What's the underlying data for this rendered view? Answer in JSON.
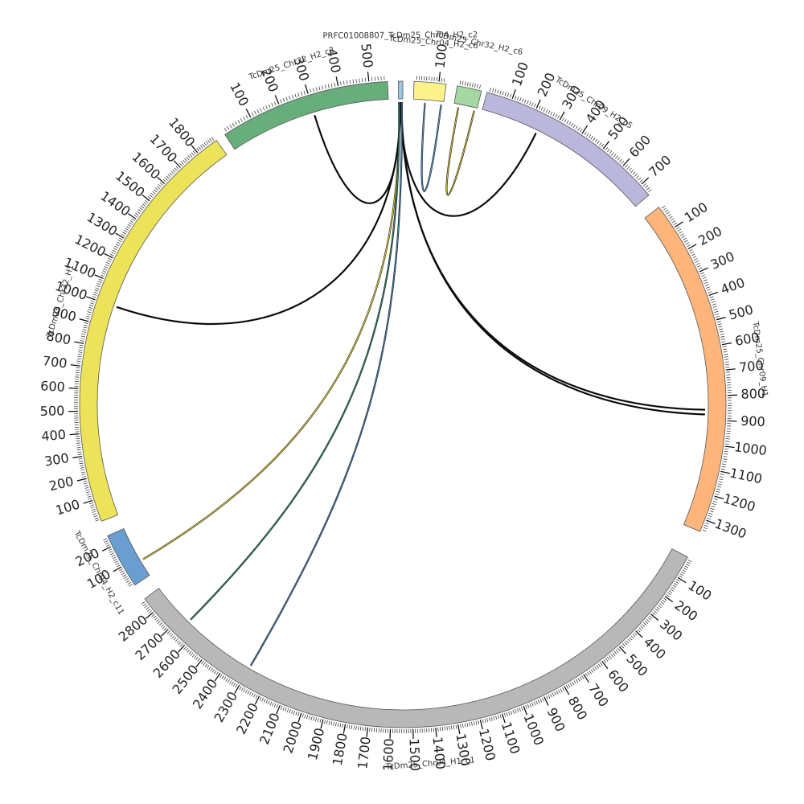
{
  "chart_data": {
    "type": "chord",
    "title": "",
    "chromosomes": [
      {
        "name": "TcDm25_Chr04_H1_c1",
        "length": 2870,
        "color": "#b8b8b8",
        "ticks": [
          100,
          200,
          300,
          400,
          500,
          600,
          700,
          800,
          900,
          1000,
          1100,
          1200,
          1300,
          1400,
          1500,
          1600,
          1700,
          1800,
          1900,
          2000,
          2100,
          2200,
          2300,
          2400,
          2500,
          2600,
          2700,
          2800
        ]
      },
      {
        "name": "TcDm25_Chr04_H2_c11",
        "length": 250,
        "color": "#6a9ed0",
        "ticks": [
          100,
          200
        ]
      },
      {
        "name": "TcDm25_Chr32_H1",
        "length": 1900,
        "color": "#ece35a",
        "ticks": [
          100,
          200,
          300,
          400,
          500,
          600,
          700,
          800,
          900,
          1000,
          1100,
          1200,
          1300,
          1400,
          1500,
          1600,
          1700,
          1800
        ]
      },
      {
        "name": "TcDm25_Chr32_H2_c3",
        "length": 560,
        "color": "#67ae7c",
        "ticks": [
          100,
          200,
          300,
          400,
          500
        ]
      },
      {
        "name": "PRFC01008807_TcDm25_Chr04_H2_c2",
        "length": 10,
        "color": "#9ec7e0",
        "ticks": []
      },
      {
        "name": "TcDm25_Chr04_H2_c6",
        "length": 130,
        "color": "#fbf28c",
        "ticks": [
          100
        ]
      },
      {
        "name": "TcDm25_Chr32_H2_c6",
        "length": 100,
        "color": "#a4d7a1",
        "ticks": []
      },
      {
        "name": "TcDm25_Chr09_H2_c5",
        "length": 750,
        "color": "#bbb7dc",
        "ticks": [
          100,
          200,
          300,
          400,
          500,
          600,
          700
        ]
      },
      {
        "name": "TcDm25_Chr09_H1",
        "length": 1350,
        "color": "#fdb57c",
        "ticks": [
          100,
          200,
          300,
          400,
          500,
          600,
          700,
          800,
          900,
          1000,
          1100,
          1200,
          1300
        ]
      }
    ],
    "links": [
      {
        "from": "PRFC01008807_TcDm25_Chr04_H2_c2",
        "from_pos": 3,
        "to": "TcDm25_Chr32_H2_c3",
        "to_pos": 300,
        "color": "#000000"
      },
      {
        "from": "PRFC01008807_TcDm25_Chr04_H2_c2",
        "from_pos": 4,
        "to": "TcDm25_Chr32_H1",
        "to_pos": 1000,
        "color": "#000000"
      },
      {
        "from": "PRFC01008807_TcDm25_Chr04_H2_c2",
        "from_pos": 5,
        "to": "TcDm25_Chr09_H2_c5",
        "to_pos": 240,
        "color": "#000000"
      },
      {
        "from": "PRFC01008807_TcDm25_Chr04_H2_c2",
        "from_pos": 6,
        "to": "TcDm25_Chr09_H1",
        "to_pos": 858,
        "color": "#000000"
      },
      {
        "from": "PRFC01008807_TcDm25_Chr04_H2_c2",
        "from_pos": 7,
        "to": "TcDm25_Chr09_H1",
        "to_pos": 878,
        "color": "#000000"
      },
      {
        "from": "PRFC01008807_TcDm25_Chr04_H2_c2",
        "from_pos": 2,
        "to": "TcDm25_Chr04_H2_c11",
        "to_pos": 80,
        "color": "#e8d83a"
      },
      {
        "from": "PRFC01008807_TcDm25_Chr04_H2_c2",
        "from_pos": 1,
        "to": "TcDm25_Chr04_H1_c1",
        "to_pos": 2660,
        "color": "#2e8a78"
      },
      {
        "from": "PRFC01008807_TcDm25_Chr04_H2_c2",
        "from_pos": 8,
        "to": "TcDm25_Chr04_H1_c1",
        "to_pos": 2300,
        "color": "#4a7fb8"
      },
      {
        "from": "TcDm25_Chr04_H2_c6",
        "from_pos": 50,
        "to": "TcDm25_Chr04_H2_c6",
        "to_pos": 120,
        "color": "#5d9cd8"
      },
      {
        "from": "TcDm25_Chr32_H2_c6",
        "from_pos": 20,
        "to": "TcDm25_Chr32_H2_c6",
        "to_pos": 90,
        "color": "#d8c43a"
      }
    ]
  }
}
